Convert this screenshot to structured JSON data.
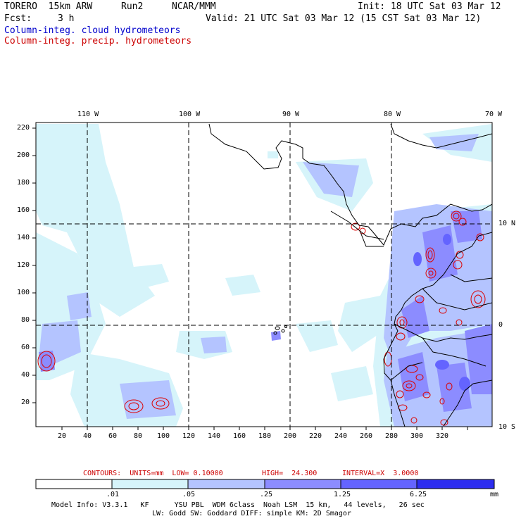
{
  "header": {
    "model": "TORERO  15km ARW",
    "run": "Run2",
    "org": "NCAR/MMM",
    "init": "Init: 18 UTC Sat 03 Mar 12",
    "fcst_label": "Fcst:",
    "fcst_value": "3 h",
    "valid": "Valid: 21 UTC Sat 03 Mar 12 (15 CST Sat 03 Mar 12)",
    "field1": "Column-integ. cloud hydrometeors",
    "field2": "Column-integ. precip. hydrometeors"
  },
  "colors": {
    "field1": "#0000cc",
    "field2": "#cc0000",
    "precip_contour": "#dd0000"
  },
  "axes": {
    "top_lon": [
      "110 W",
      "100 W",
      "90 W",
      "80 W",
      "70 W"
    ],
    "left_y": [
      "220",
      "200",
      "180",
      "160",
      "140",
      "120",
      "100",
      "80",
      "60",
      "40",
      "20"
    ],
    "bottom_x": [
      "20",
      "40",
      "60",
      "80",
      "100",
      "120",
      "140",
      "160",
      "180",
      "200",
      "220",
      "240",
      "260",
      "280",
      "300",
      "320"
    ],
    "right_lat": [
      "10 N",
      "0",
      "10 S"
    ]
  },
  "contour_info": {
    "units": "CONTOURS:  UNITS=mm  LOW= 0.10000",
    "high": "HIGH=  24.300",
    "interval": "INTERVAL=X  3.0000"
  },
  "colorbar": {
    "labels": [
      ".01",
      ".05",
      ".25",
      "1.25",
      "6.25"
    ],
    "unit": "mm",
    "colors": [
      "#ffffff",
      "#d6f4fa",
      "#b4c4ff",
      "#8c8cff",
      "#6464ff",
      "#2d2df0"
    ]
  },
  "footer": {
    "line1": "Model Info: V3.3.1   KF      YSU PBL  WDM 6class  Noah LSM  15 km,   44 levels,   26 sec",
    "line2": "LW: Godd SW: Goddard DIFF: simple KM: 2D Smagor"
  }
}
